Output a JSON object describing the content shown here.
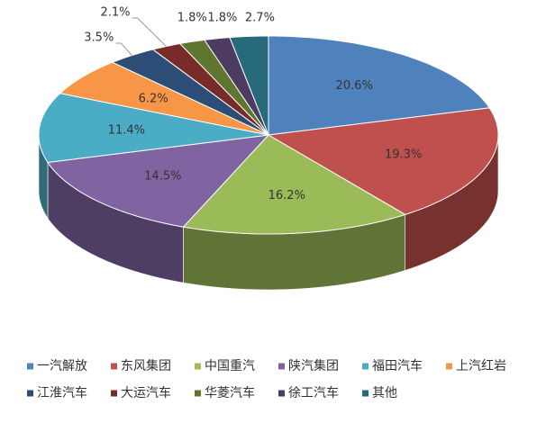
{
  "chart_data": {
    "type": "pie3d",
    "categories": [
      "一汽解放",
      "东风集团",
      "中国重汽",
      "陕汽集团",
      "福田汽车",
      "上汽红岩",
      "江淮汽车",
      "大运汽车",
      "华菱汽车",
      "徐工汽车",
      "其他"
    ],
    "values": [
      20.6,
      19.3,
      16.2,
      14.5,
      11.4,
      6.2,
      3.5,
      2.1,
      1.8,
      1.8,
      2.7
    ],
    "value_labels": [
      "20.6%",
      "19.3%",
      "16.2%",
      "14.5%",
      "11.4%",
      "6.2%",
      "3.5%",
      "2.1%",
      "1.8%",
      "1.8%",
      "2.7%"
    ],
    "colors": [
      "#4f81bd",
      "#c0504d",
      "#9bbb59",
      "#8064a2",
      "#4bacc6",
      "#f79646",
      "#2c4d75",
      "#772c2a",
      "#5f7530",
      "#4d3b62",
      "#276a7c"
    ],
    "legend": "bottom"
  }
}
